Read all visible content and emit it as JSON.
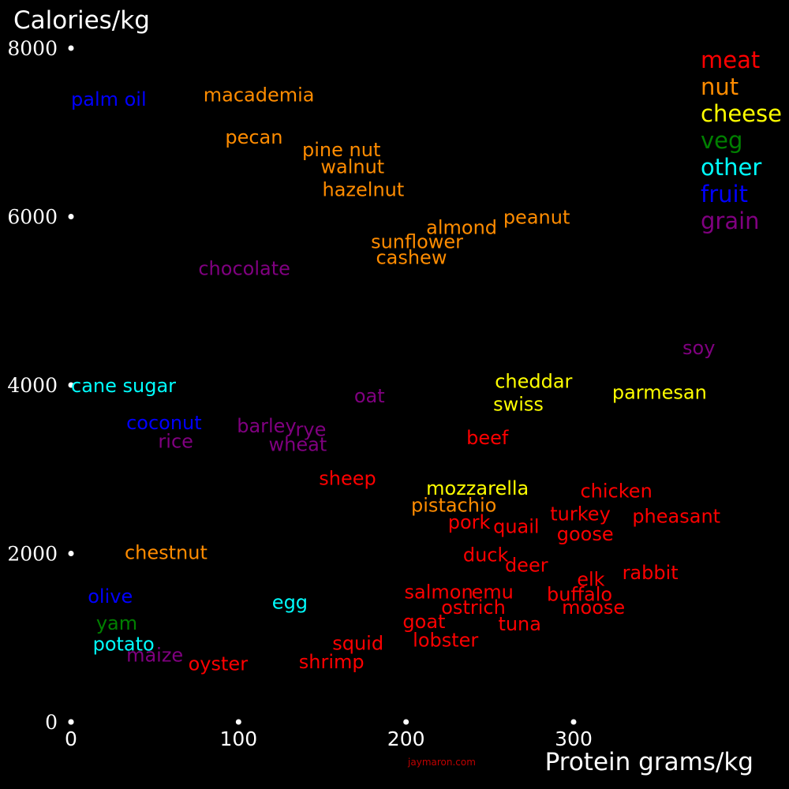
{
  "chart_data": {
    "type": "scatter",
    "title": "",
    "ylabel": "Calories/kg",
    "xlabel": "Protein grams/kg",
    "xlim": [
      0,
      390
    ],
    "ylim": [
      0,
      8000
    ],
    "x_ticks": [
      0,
      100,
      200,
      300
    ],
    "y_ticks": [
      0,
      2000,
      4000,
      6000,
      8000
    ],
    "x_tick_labels": [
      "0",
      "100",
      "200",
      "300"
    ],
    "y_tick_labels": [
      "0",
      "2000",
      "4000",
      "6000",
      "8000"
    ],
    "grid": false,
    "legend_position": "top-right",
    "credit": "jaymaron.com",
    "categories": [
      {
        "name": "meat",
        "color": "#ff0000"
      },
      {
        "name": "nut",
        "color": "#ff8c00"
      },
      {
        "name": "cheese",
        "color": "#ffff00"
      },
      {
        "name": "veg",
        "color": "#008000"
      },
      {
        "name": "other",
        "color": "#00ffff"
      },
      {
        "name": "fruit",
        "color": "#0000ff"
      },
      {
        "name": "grain",
        "color": "#800080"
      }
    ],
    "points": [
      {
        "label": "palm oil",
        "category": "fruit",
        "x": 0,
        "y": 7400
      },
      {
        "label": "macademia",
        "category": "nut",
        "x": 79,
        "y": 7450
      },
      {
        "label": "pecan",
        "category": "nut",
        "x": 92,
        "y": 6950
      },
      {
        "label": "pine nut",
        "category": "nut",
        "x": 138,
        "y": 6800
      },
      {
        "label": "walnut",
        "category": "nut",
        "x": 149,
        "y": 6600
      },
      {
        "label": "hazelnut",
        "category": "nut",
        "x": 150,
        "y": 6330
      },
      {
        "label": "almond",
        "category": "nut",
        "x": 212,
        "y": 5880
      },
      {
        "label": "peanut",
        "category": "nut",
        "x": 258,
        "y": 6000
      },
      {
        "label": "sunflower",
        "category": "nut",
        "x": 179,
        "y": 5710
      },
      {
        "label": "cashew",
        "category": "nut",
        "x": 182,
        "y": 5520
      },
      {
        "label": "chocolate",
        "category": "grain",
        "x": 76,
        "y": 5390
      },
      {
        "label": "soy",
        "category": "grain",
        "x": 365,
        "y": 4450
      },
      {
        "label": "cane sugar",
        "category": "other",
        "x": 0,
        "y": 4000
      },
      {
        "label": "oat",
        "category": "grain",
        "x": 169,
        "y": 3880
      },
      {
        "label": "cheddar",
        "category": "cheese",
        "x": 253,
        "y": 4050
      },
      {
        "label": "swiss",
        "category": "cheese",
        "x": 252,
        "y": 3780
      },
      {
        "label": "parmesan",
        "category": "cheese",
        "x": 323,
        "y": 3920
      },
      {
        "label": "coconut",
        "category": "fruit",
        "x": 33,
        "y": 3560
      },
      {
        "label": "rice",
        "category": "grain",
        "x": 52,
        "y": 3340
      },
      {
        "label": "barley",
        "category": "grain",
        "x": 99,
        "y": 3520
      },
      {
        "label": "rye",
        "category": "grain",
        "x": 134,
        "y": 3480
      },
      {
        "label": "wheat",
        "category": "grain",
        "x": 118,
        "y": 3300
      },
      {
        "label": "beef",
        "category": "meat",
        "x": 236,
        "y": 3380
      },
      {
        "label": "sheep",
        "category": "meat",
        "x": 148,
        "y": 2900
      },
      {
        "label": "mozzarella",
        "category": "cheese",
        "x": 212,
        "y": 2780
      },
      {
        "label": "pistachio",
        "category": "nut",
        "x": 203,
        "y": 2580
      },
      {
        "label": "chicken",
        "category": "meat",
        "x": 304,
        "y": 2750
      },
      {
        "label": "turkey",
        "category": "meat",
        "x": 286,
        "y": 2480
      },
      {
        "label": "pheasant",
        "category": "meat",
        "x": 335,
        "y": 2450
      },
      {
        "label": "pork",
        "category": "meat",
        "x": 225,
        "y": 2380
      },
      {
        "label": "quail",
        "category": "meat",
        "x": 252,
        "y": 2330
      },
      {
        "label": "goose",
        "category": "meat",
        "x": 290,
        "y": 2240
      },
      {
        "label": "duck",
        "category": "meat",
        "x": 234,
        "y": 1990
      },
      {
        "label": "deer",
        "category": "meat",
        "x": 259,
        "y": 1870
      },
      {
        "label": "elk",
        "category": "meat",
        "x": 302,
        "y": 1700
      },
      {
        "label": "rabbit",
        "category": "meat",
        "x": 329,
        "y": 1780
      },
      {
        "label": "chestnut",
        "category": "nut",
        "x": 32,
        "y": 2020
      },
      {
        "label": "olive",
        "category": "fruit",
        "x": 10,
        "y": 1500
      },
      {
        "label": "egg",
        "category": "other",
        "x": 120,
        "y": 1430
      },
      {
        "label": "salmon",
        "category": "meat",
        "x": 199,
        "y": 1550
      },
      {
        "label": "emu",
        "category": "meat",
        "x": 239,
        "y": 1550
      },
      {
        "label": "buffalo",
        "category": "meat",
        "x": 284,
        "y": 1520
      },
      {
        "label": "ostrich",
        "category": "meat",
        "x": 221,
        "y": 1370
      },
      {
        "label": "moose",
        "category": "meat",
        "x": 293,
        "y": 1370
      },
      {
        "label": "yam",
        "category": "veg",
        "x": 15,
        "y": 1180
      },
      {
        "label": "goat",
        "category": "meat",
        "x": 198,
        "y": 1200
      },
      {
        "label": "tuna",
        "category": "meat",
        "x": 255,
        "y": 1170
      },
      {
        "label": "lobster",
        "category": "meat",
        "x": 204,
        "y": 980
      },
      {
        "label": "potato",
        "category": "other",
        "x": 13,
        "y": 930
      },
      {
        "label": "squid",
        "category": "meat",
        "x": 156,
        "y": 940
      },
      {
        "label": "maize",
        "category": "grain",
        "x": 33,
        "y": 800
      },
      {
        "label": "oyster",
        "category": "meat",
        "x": 70,
        "y": 700
      },
      {
        "label": "shrimp",
        "category": "meat",
        "x": 136,
        "y": 720
      }
    ]
  }
}
